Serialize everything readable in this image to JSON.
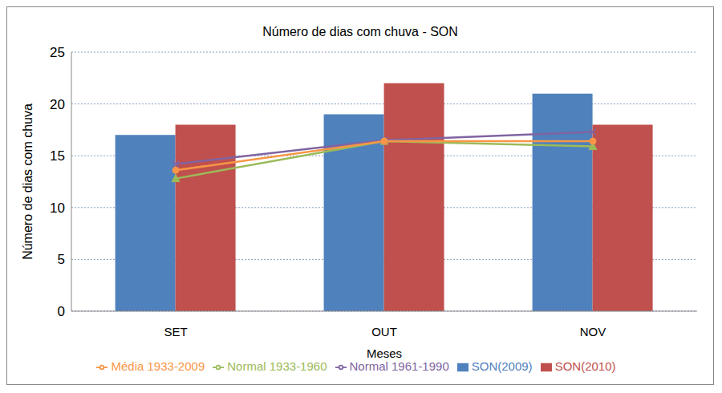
{
  "chart_data": {
    "type": "bar",
    "title": "Número de dias com chuva - SON",
    "x_label": "Meses",
    "y_label": "Número de dias com chuva",
    "categories": [
      "SET",
      "OUT",
      "NOV"
    ],
    "series": [
      {
        "name": "SON(2009)",
        "type": "bar",
        "color": "#4f81bd",
        "values": [
          17,
          19,
          21
        ]
      },
      {
        "name": "SON(2010)",
        "type": "bar",
        "color": "#c0504d",
        "values": [
          18,
          22,
          18
        ]
      },
      {
        "name": "Normal 1933-1960",
        "type": "line",
        "color": "#9bbb59",
        "marker": "triangle",
        "values": [
          12.8,
          16.4,
          15.9
        ]
      },
      {
        "name": "Normal 1961-1990",
        "type": "line",
        "color": "#8064a2",
        "marker": "x",
        "values": [
          14.2,
          16.5,
          17.3
        ]
      },
      {
        "name": "Média 1933-2009",
        "type": "line",
        "color": "#f79646",
        "marker": "circle",
        "values": [
          13.6,
          16.4,
          16.4
        ]
      }
    ],
    "ylim": [
      0,
      25
    ],
    "yticks": [
      0,
      5,
      10,
      15,
      20,
      25
    ],
    "grid": true,
    "legend": "bottom"
  }
}
